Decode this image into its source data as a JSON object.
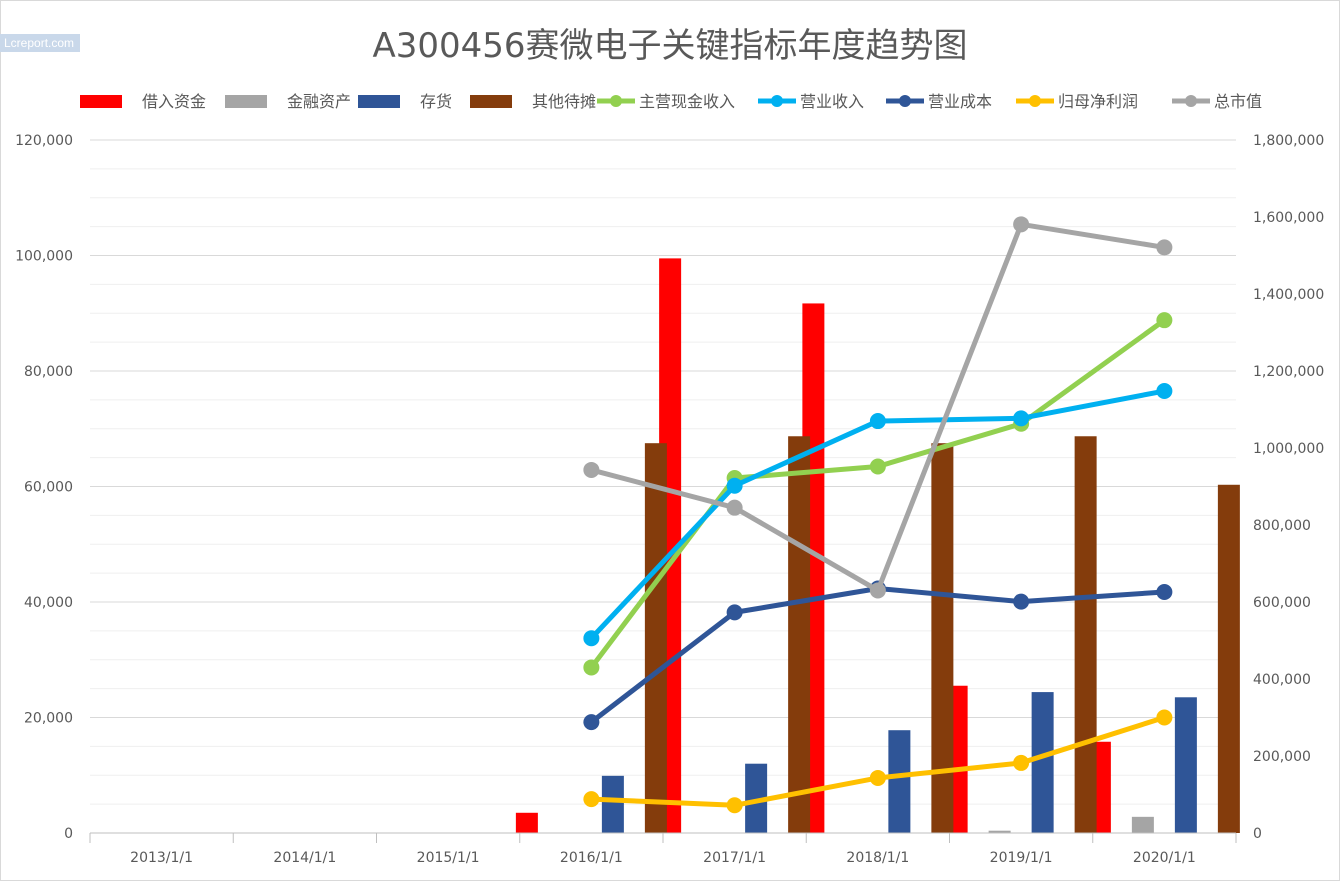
{
  "watermark": "Lcreport.com",
  "chart_data": {
    "type": "bar",
    "title": "A300456赛微电子关键指标年度趋势图",
    "categories": [
      "2013/1/1",
      "2014/1/1",
      "2015/1/1",
      "2016/1/1",
      "2017/1/1",
      "2018/1/1",
      "2019/1/1",
      "2020/1/1"
    ],
    "y_left": {
      "ylim": [
        0,
        120000
      ],
      "ticks": [
        "0",
        "20,000",
        "40,000",
        "60,000",
        "80,000",
        "100,000",
        "120,000"
      ]
    },
    "y_right": {
      "ylim": [
        0,
        1800000
      ],
      "ticks": [
        "0",
        "200,000",
        "400,000",
        "600,000",
        "800,000",
        "1,000,000",
        "1,200,000",
        "1,400,000",
        "1,600,000",
        "1,800,000"
      ]
    },
    "grid": true,
    "legend_position": "top",
    "bar_series": [
      {
        "name": "借入资金",
        "color": "#ff0000",
        "values": [
          null,
          null,
          null,
          3500,
          99500,
          91700,
          25500,
          15800
        ]
      },
      {
        "name": "金融资产",
        "color": "#a5a5a5",
        "values": [
          null,
          null,
          null,
          null,
          null,
          null,
          400,
          2800
        ]
      },
      {
        "name": "存货",
        "color": "#2f5597",
        "values": [
          null,
          null,
          null,
          9900,
          12000,
          17800,
          24400,
          23500
        ]
      },
      {
        "name": "其他待摊",
        "color": "#843c0c",
        "values": [
          null,
          null,
          null,
          67500,
          68700,
          67500,
          68700,
          60300
        ]
      }
    ],
    "line_series": [
      {
        "name": "主营现金收入",
        "color": "#92d050",
        "axis": "right",
        "values": [
          null,
          null,
          null,
          430000,
          922000,
          952000,
          1063000,
          1332000
        ]
      },
      {
        "name": "营业收入",
        "color": "#00b0f0",
        "axis": "right",
        "values": [
          null,
          null,
          null,
          506000,
          902000,
          1070000,
          1077000,
          1148000
        ]
      },
      {
        "name": "营业成本",
        "color": "#2f5597",
        "axis": "right",
        "values": [
          null,
          null,
          null,
          288000,
          573000,
          635000,
          601000,
          626000
        ]
      },
      {
        "name": "归母净利润",
        "color": "#ffc000",
        "axis": "right",
        "values": [
          null,
          null,
          null,
          88000,
          72000,
          143000,
          182000,
          300000
        ]
      },
      {
        "name": "总市值",
        "color": "#a5a5a5",
        "axis": "right",
        "values": [
          null,
          null,
          null,
          943000,
          845000,
          630000,
          1581000,
          1521000
        ]
      }
    ]
  }
}
